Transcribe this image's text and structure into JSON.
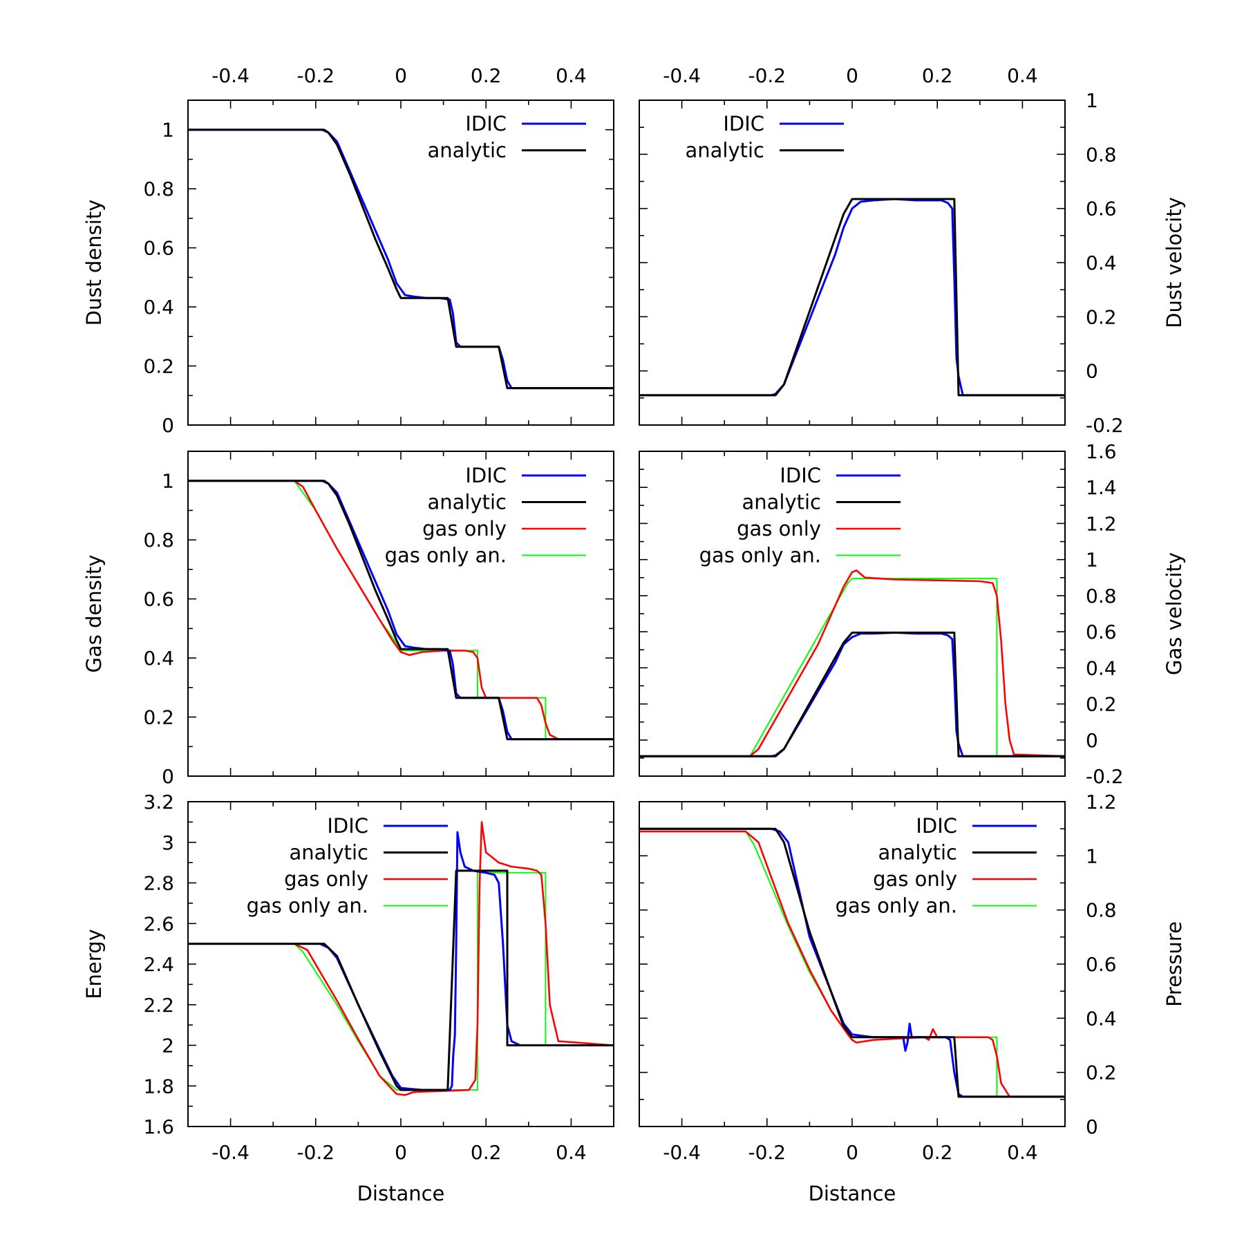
{
  "figure": {
    "xlabel": "Distance",
    "colors": {
      "IDIC": "#0000ff",
      "analytic": "#000000",
      "gas only": "#ff0000",
      "gas only an.": "#00ff00"
    }
  },
  "chart_data": [
    {
      "id": "dust-density",
      "type": "line",
      "ylabel": "Dust density",
      "xlim": [
        -0.5,
        0.5
      ],
      "ylim": [
        0,
        1.1
      ],
      "xticks": [
        -0.4,
        -0.2,
        0,
        0.2,
        0.4
      ],
      "xtick_labels": [
        "-0.4",
        "-0.2",
        "0",
        "0.2",
        "0.4"
      ],
      "yticks": [
        0,
        0.2,
        0.4,
        0.6,
        0.8,
        1
      ],
      "ytick_labels": [
        "0",
        "0.2",
        "0.4",
        "0.6",
        "0.8",
        "1"
      ],
      "legend": [
        "IDIC",
        "analytic"
      ],
      "series": [
        {
          "name": "IDIC",
          "x": [
            -0.5,
            -0.2,
            -0.185,
            -0.17,
            -0.15,
            -0.12,
            -0.09,
            -0.06,
            -0.03,
            -0.01,
            0.01,
            0.03,
            0.06,
            0.09,
            0.115,
            0.122,
            0.13,
            0.14,
            0.2,
            0.23,
            0.24,
            0.25,
            0.26,
            0.3,
            0.5
          ],
          "y": [
            1,
            1,
            1,
            0.99,
            0.96,
            0.86,
            0.76,
            0.66,
            0.56,
            0.48,
            0.44,
            0.435,
            0.43,
            0.43,
            0.425,
            0.38,
            0.28,
            0.265,
            0.265,
            0.265,
            0.22,
            0.15,
            0.125,
            0.125,
            0.125
          ]
        },
        {
          "name": "analytic",
          "x": [
            -0.5,
            -0.19,
            -0.18,
            -0.17,
            -0.15,
            -0.12,
            -0.09,
            -0.06,
            -0.03,
            -0.01,
            0,
            0.11,
            0.13,
            0.23,
            0.25,
            0.5
          ],
          "y": [
            1,
            1,
            1,
            0.99,
            0.95,
            0.85,
            0.74,
            0.63,
            0.53,
            0.46,
            0.43,
            0.43,
            0.265,
            0.265,
            0.125,
            0.125
          ]
        }
      ]
    },
    {
      "id": "dust-velocity",
      "type": "line",
      "ylabel": "Dust velocity",
      "xlim": [
        -0.5,
        0.5
      ],
      "ylim": [
        -0.2,
        1
      ],
      "xticks": [
        -0.4,
        -0.2,
        0,
        0.2,
        0.4
      ],
      "xtick_labels": [
        "-0.4",
        "-0.2",
        "0",
        "0.2",
        "0.4"
      ],
      "yticks": [
        -0.2,
        0,
        0.2,
        0.4,
        0.6,
        0.8,
        1
      ],
      "ytick_labels": [
        "-0.2",
        "0",
        "0.2",
        "0.4",
        "0.6",
        "0.8",
        "1"
      ],
      "legend": [
        "IDIC",
        "analytic"
      ],
      "series": [
        {
          "name": "IDIC",
          "x": [
            -0.5,
            -0.19,
            -0.18,
            -0.16,
            -0.12,
            -0.08,
            -0.04,
            -0.02,
            0,
            0.02,
            0.05,
            0.1,
            0.15,
            0.21,
            0.225,
            0.235,
            0.24,
            0.245,
            0.25,
            0.26,
            0.5
          ],
          "y": [
            -0.09,
            -0.09,
            -0.085,
            -0.05,
            0.11,
            0.27,
            0.43,
            0.53,
            0.6,
            0.625,
            0.63,
            0.635,
            0.63,
            0.63,
            0.62,
            0.6,
            0.35,
            0.05,
            -0.02,
            -0.09,
            -0.09
          ]
        },
        {
          "name": "analytic",
          "x": [
            -0.5,
            -0.18,
            -0.16,
            -0.02,
            0,
            0.24,
            0.25,
            0.5
          ],
          "y": [
            -0.09,
            -0.09,
            -0.05,
            0.58,
            0.635,
            0.635,
            -0.09,
            -0.09
          ]
        }
      ]
    },
    {
      "id": "gas-density",
      "type": "line",
      "ylabel": "Gas density",
      "xlim": [
        -0.5,
        0.5
      ],
      "ylim": [
        0,
        1.1
      ],
      "xticks": [
        -0.4,
        -0.2,
        0,
        0.2,
        0.4
      ],
      "xtick_labels": [
        "-0.4",
        "-0.2",
        "0",
        "0.2",
        "0.4"
      ],
      "yticks": [
        0,
        0.2,
        0.4,
        0.6,
        0.8,
        1
      ],
      "ytick_labels": [
        "0",
        "0.2",
        "0.4",
        "0.6",
        "0.8",
        "1"
      ],
      "legend": [
        "IDIC",
        "analytic",
        "gas only",
        "gas only an."
      ],
      "series": [
        {
          "name": "IDIC",
          "x": [
            -0.5,
            -0.2,
            -0.185,
            -0.17,
            -0.15,
            -0.12,
            -0.09,
            -0.06,
            -0.03,
            -0.01,
            0.01,
            0.03,
            0.06,
            0.09,
            0.115,
            0.122,
            0.13,
            0.14,
            0.2,
            0.23,
            0.24,
            0.25,
            0.26,
            0.3,
            0.5
          ],
          "y": [
            1,
            1,
            1,
            0.99,
            0.96,
            0.86,
            0.76,
            0.66,
            0.56,
            0.48,
            0.44,
            0.435,
            0.43,
            0.43,
            0.425,
            0.38,
            0.28,
            0.265,
            0.265,
            0.265,
            0.22,
            0.15,
            0.125,
            0.125,
            0.125
          ]
        },
        {
          "name": "analytic",
          "x": [
            -0.5,
            -0.19,
            -0.18,
            -0.17,
            -0.15,
            -0.12,
            -0.09,
            -0.06,
            -0.03,
            -0.01,
            0,
            0.11,
            0.13,
            0.23,
            0.25,
            0.5
          ],
          "y": [
            1,
            1,
            1,
            0.99,
            0.95,
            0.85,
            0.74,
            0.63,
            0.53,
            0.46,
            0.43,
            0.43,
            0.265,
            0.265,
            0.125,
            0.125
          ]
        },
        {
          "name": "gas only",
          "x": [
            -0.5,
            -0.25,
            -0.23,
            -0.2,
            -0.15,
            -0.1,
            -0.05,
            -0.02,
            0,
            0.02,
            0.05,
            0.1,
            0.15,
            0.17,
            0.18,
            0.19,
            0.2,
            0.25,
            0.3,
            0.32,
            0.33,
            0.34,
            0.35,
            0.37,
            0.5
          ],
          "y": [
            1,
            1,
            0.98,
            0.9,
            0.77,
            0.65,
            0.53,
            0.46,
            0.42,
            0.41,
            0.42,
            0.425,
            0.425,
            0.42,
            0.4,
            0.3,
            0.265,
            0.265,
            0.265,
            0.265,
            0.24,
            0.18,
            0.14,
            0.125,
            0.125
          ]
        },
        {
          "name": "gas only an.",
          "x": [
            -0.5,
            -0.25,
            -0.24,
            -0.2,
            -0.15,
            -0.1,
            -0.05,
            -0.01,
            0,
            0.18,
            0.18,
            0.34,
            0.34,
            0.5
          ],
          "y": [
            1,
            1,
            0.98,
            0.9,
            0.77,
            0.65,
            0.53,
            0.45,
            0.425,
            0.425,
            0.265,
            0.265,
            0.125,
            0.125
          ]
        }
      ]
    },
    {
      "id": "gas-velocity",
      "type": "line",
      "ylabel": "Gas velocity",
      "xlim": [
        -0.5,
        0.5
      ],
      "ylim": [
        -0.2,
        1.6
      ],
      "xticks": [
        -0.4,
        -0.2,
        0,
        0.2,
        0.4
      ],
      "xtick_labels": [
        "-0.4",
        "-0.2",
        "0",
        "0.2",
        "0.4"
      ],
      "yticks": [
        -0.2,
        0,
        0.2,
        0.4,
        0.6,
        0.8,
        1,
        1.2,
        1.4,
        1.6
      ],
      "ytick_labels": [
        "-0.2",
        "0",
        "0.2",
        "0.4",
        "0.6",
        "0.8",
        "1",
        "1.2",
        "1.4",
        "1.6"
      ],
      "legend": [
        "IDIC",
        "analytic",
        "gas only",
        "gas only an."
      ],
      "series": [
        {
          "name": "IDIC",
          "x": [
            -0.5,
            -0.19,
            -0.18,
            -0.16,
            -0.12,
            -0.08,
            -0.04,
            -0.02,
            0,
            0.02,
            0.05,
            0.1,
            0.15,
            0.21,
            0.225,
            0.235,
            0.24,
            0.245,
            0.25,
            0.26,
            0.5
          ],
          "y": [
            -0.09,
            -0.09,
            -0.085,
            -0.05,
            0.11,
            0.27,
            0.43,
            0.53,
            0.57,
            0.59,
            0.59,
            0.595,
            0.59,
            0.59,
            0.58,
            0.56,
            0.35,
            0.05,
            -0.02,
            -0.09,
            -0.09
          ]
        },
        {
          "name": "analytic",
          "x": [
            -0.5,
            -0.18,
            -0.16,
            -0.02,
            0,
            0.24,
            0.25,
            0.5
          ],
          "y": [
            -0.09,
            -0.09,
            -0.05,
            0.54,
            0.595,
            0.595,
            -0.09,
            -0.09
          ]
        },
        {
          "name": "gas only",
          "x": [
            -0.5,
            -0.24,
            -0.22,
            -0.15,
            -0.08,
            -0.02,
            0,
            0.01,
            0.03,
            0.1,
            0.2,
            0.3,
            0.33,
            0.34,
            0.35,
            0.36,
            0.37,
            0.38,
            0.5
          ],
          "y": [
            -0.09,
            -0.09,
            -0.05,
            0.24,
            0.53,
            0.85,
            0.93,
            0.94,
            0.9,
            0.89,
            0.885,
            0.88,
            0.87,
            0.8,
            0.55,
            0.2,
            0,
            -0.08,
            -0.09
          ]
        },
        {
          "name": "gas only an.",
          "x": [
            -0.5,
            -0.24,
            -0.01,
            0,
            0.34,
            0.34,
            0.5
          ],
          "y": [
            -0.09,
            -0.09,
            0.87,
            0.895,
            0.895,
            -0.09,
            -0.09
          ]
        }
      ]
    },
    {
      "id": "energy",
      "type": "line",
      "ylabel": "Energy",
      "xlim": [
        -0.5,
        0.5
      ],
      "ylim": [
        1.6,
        3.2
      ],
      "xticks": [
        -0.4,
        -0.2,
        0,
        0.2,
        0.4
      ],
      "xtick_labels": [
        "-0.4",
        "-0.2",
        "0",
        "0.2",
        "0.4"
      ],
      "yticks": [
        1.6,
        1.8,
        2,
        2.2,
        2.4,
        2.6,
        2.8,
        3,
        3.2
      ],
      "ytick_labels": [
        "1.6",
        "1.8",
        "2",
        "2.2",
        "2.4",
        "2.6",
        "2.8",
        "3",
        "3.2"
      ],
      "legend": [
        "IDIC",
        "analytic",
        "gas only",
        "gas only an."
      ],
      "series": [
        {
          "name": "IDIC",
          "x": [
            -0.5,
            -0.19,
            -0.17,
            -0.15,
            -0.1,
            -0.05,
            -0.02,
            0,
            0.05,
            0.1,
            0.115,
            0.12,
            0.123,
            0.127,
            0.13,
            0.133,
            0.14,
            0.15,
            0.17,
            0.2,
            0.22,
            0.23,
            0.24,
            0.25,
            0.26,
            0.28,
            0.5
          ],
          "y": [
            2.5,
            2.5,
            2.48,
            2.43,
            2.2,
            1.98,
            1.85,
            1.79,
            1.78,
            1.78,
            1.78,
            1.8,
            1.95,
            2.05,
            2.5,
            3.05,
            2.95,
            2.88,
            2.86,
            2.85,
            2.84,
            2.8,
            2.5,
            2.1,
            2.02,
            2,
            2
          ]
        },
        {
          "name": "analytic",
          "x": [
            -0.5,
            -0.18,
            -0.15,
            -0.1,
            -0.05,
            -0.01,
            0,
            0.11,
            0.13,
            0.25,
            0.25,
            0.5
          ],
          "y": [
            2.5,
            2.5,
            2.44,
            2.2,
            1.97,
            1.8,
            1.78,
            1.78,
            2.86,
            2.86,
            2,
            2
          ]
        },
        {
          "name": "gas only",
          "x": [
            -0.5,
            -0.25,
            -0.22,
            -0.15,
            -0.1,
            -0.05,
            -0.01,
            0.01,
            0.03,
            0.1,
            0.16,
            0.175,
            0.18,
            0.185,
            0.19,
            0.2,
            0.23,
            0.26,
            0.3,
            0.32,
            0.33,
            0.34,
            0.35,
            0.37,
            0.5
          ],
          "y": [
            2.5,
            2.5,
            2.47,
            2.22,
            2.03,
            1.85,
            1.76,
            1.755,
            1.77,
            1.775,
            1.78,
            1.83,
            2.1,
            2.8,
            3.1,
            2.95,
            2.9,
            2.88,
            2.87,
            2.86,
            2.84,
            2.6,
            2.2,
            2.02,
            2
          ]
        },
        {
          "name": "gas only an.",
          "x": [
            -0.5,
            -0.25,
            -0.23,
            -0.15,
            -0.1,
            -0.05,
            -0.01,
            0,
            0.18,
            0.18,
            0.34,
            0.34,
            0.5
          ],
          "y": [
            2.5,
            2.5,
            2.46,
            2.2,
            2.02,
            1.85,
            1.78,
            1.78,
            1.78,
            2.85,
            2.85,
            2,
            2
          ]
        }
      ]
    },
    {
      "id": "pressure",
      "type": "line",
      "ylabel": "Pressure",
      "xlim": [
        -0.5,
        0.5
      ],
      "ylim": [
        0,
        1.2
      ],
      "xticks": [
        -0.4,
        -0.2,
        0,
        0.2,
        0.4
      ],
      "xtick_labels": [
        "-0.4",
        "-0.2",
        "0",
        "0.2",
        "0.4"
      ],
      "yticks": [
        0,
        0.2,
        0.4,
        0.6,
        0.8,
        1,
        1.2
      ],
      "ytick_labels": [
        "0",
        "0.2",
        "0.4",
        "0.6",
        "0.8",
        "1",
        "1.2"
      ],
      "legend": [
        "IDIC",
        "analytic",
        "gas only",
        "gas only an."
      ],
      "series": [
        {
          "name": "IDIC",
          "x": [
            -0.5,
            -0.19,
            -0.17,
            -0.15,
            -0.1,
            -0.05,
            -0.02,
            0,
            0.05,
            0.1,
            0.12,
            0.125,
            0.13,
            0.135,
            0.14,
            0.2,
            0.22,
            0.23,
            0.24,
            0.25,
            0.26,
            0.5
          ],
          "y": [
            1.1,
            1.1,
            1.09,
            1.05,
            0.7,
            0.5,
            0.38,
            0.34,
            0.33,
            0.33,
            0.33,
            0.28,
            0.31,
            0.38,
            0.33,
            0.33,
            0.33,
            0.32,
            0.2,
            0.12,
            0.11,
            0.11
          ]
        },
        {
          "name": "analytic",
          "x": [
            -0.5,
            -0.18,
            -0.16,
            -0.1,
            -0.05,
            -0.02,
            0,
            0.24,
            0.25,
            0.5
          ],
          "y": [
            1.1,
            1.1,
            1.05,
            0.72,
            0.5,
            0.37,
            0.33,
            0.33,
            0.11,
            0.11
          ]
        },
        {
          "name": "gas only",
          "x": [
            -0.5,
            -0.25,
            -0.22,
            -0.15,
            -0.1,
            -0.05,
            -0.01,
            0,
            0.01,
            0.05,
            0.17,
            0.18,
            0.19,
            0.2,
            0.3,
            0.32,
            0.33,
            0.34,
            0.35,
            0.37,
            0.5
          ],
          "y": [
            1.09,
            1.09,
            1.05,
            0.75,
            0.58,
            0.43,
            0.34,
            0.32,
            0.31,
            0.32,
            0.33,
            0.32,
            0.36,
            0.33,
            0.33,
            0.33,
            0.32,
            0.26,
            0.16,
            0.11,
            0.11
          ]
        },
        {
          "name": "gas only an.",
          "x": [
            -0.5,
            -0.25,
            -0.23,
            -0.15,
            -0.1,
            -0.05,
            -0.01,
            0,
            0.34,
            0.34,
            0.5
          ],
          "y": [
            1.09,
            1.09,
            1.04,
            0.74,
            0.57,
            0.43,
            0.34,
            0.33,
            0.33,
            0.11,
            0.11
          ]
        }
      ]
    }
  ]
}
